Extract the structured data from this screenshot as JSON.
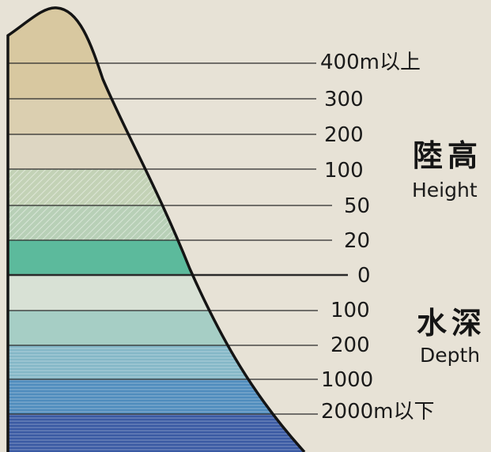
{
  "legend": {
    "levels": [
      "400m以上",
      "300",
      "200",
      "100",
      "50",
      "20",
      "0",
      "100",
      "200",
      "1000",
      "2000m以下"
    ],
    "height_group": {
      "title": "陸高",
      "subtitle": "Height"
    },
    "depth_group": {
      "title": "水深",
      "subtitle": "Depth"
    },
    "bands": [
      {
        "fill": "#d8c8a0",
        "pattern": "none"
      },
      {
        "fill": "#dbcfb0",
        "pattern": "none"
      },
      {
        "fill": "#ddd6c2",
        "pattern": "none"
      },
      {
        "fill": "#c3d2b6",
        "pattern": "hatch"
      },
      {
        "fill": "#b8d0b7",
        "pattern": "hatch"
      },
      {
        "fill": "#5cba9c",
        "pattern": "none"
      },
      {
        "fill": "#d8e1d5",
        "pattern": "none"
      },
      {
        "fill": "#a6cec5",
        "pattern": "none"
      },
      {
        "fill": "#84b7c7",
        "pattern": "lines"
      },
      {
        "fill": "#4f8cbd",
        "pattern": "lines"
      },
      {
        "fill": "#3a5aa3",
        "pattern": "lines"
      }
    ],
    "outline_color": "#141414"
  }
}
